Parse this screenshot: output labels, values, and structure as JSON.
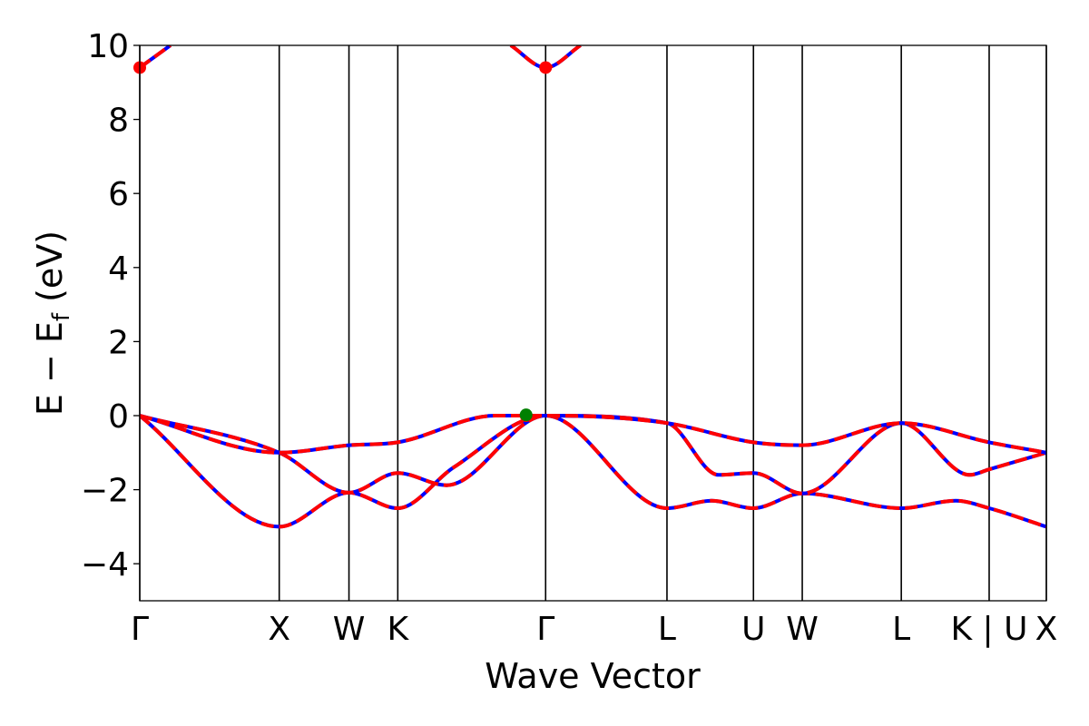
{
  "chart_data": {
    "type": "line",
    "title": "",
    "xlabel": "Wave Vector",
    "ylabel": {
      "main": "E − E",
      "subscript": "f",
      "unit": " (eV)"
    },
    "ylim": [
      -5,
      10
    ],
    "xlim": [
      0,
      6.5
    ],
    "y_ticks": [
      {
        "value": -4,
        "label": "−4"
      },
      {
        "value": -2,
        "label": "−2"
      },
      {
        "value": 0,
        "label": "0"
      },
      {
        "value": 2,
        "label": "2"
      },
      {
        "value": 4,
        "label": "4"
      },
      {
        "value": 6,
        "label": "6"
      },
      {
        "value": 8,
        "label": "8"
      },
      {
        "value": 10,
        "label": "10"
      }
    ],
    "kpoints": [
      {
        "label": "Γ",
        "x": 0.0
      },
      {
        "label": "X",
        "x": 1.0
      },
      {
        "label": "W",
        "x": 1.5
      },
      {
        "label": "K",
        "x": 1.85
      },
      {
        "label": "Γ",
        "x": 2.91
      },
      {
        "label": "L",
        "x": 3.78
      },
      {
        "label": "U",
        "x": 4.4
      },
      {
        "label": "W",
        "x": 4.75
      },
      {
        "label": "L",
        "x": 5.46
      },
      {
        "label": "K | U",
        "x": 6.09
      },
      {
        "label": "X",
        "x": 6.5
      }
    ],
    "grid": false,
    "legend": "none",
    "colors": {
      "spin_down": "#0000ff",
      "spin_up": "#ff0000",
      "cbm": "#ff0000",
      "vbm": "#008000"
    },
    "bands": [
      {
        "points": [
          [
            0,
            0
          ],
          [
            1,
            -3
          ],
          [
            1.5,
            -2.08
          ],
          [
            1.85,
            -2.5
          ],
          [
            2.25,
            -1.4
          ],
          [
            2.91,
            0
          ],
          [
            3.78,
            -2.5
          ],
          [
            4.1,
            -2.3
          ],
          [
            4.4,
            -2.5
          ],
          [
            4.75,
            -2.1
          ],
          [
            5.46,
            -2.5
          ],
          [
            5.85,
            -2.3
          ],
          [
            6.09,
            -2.5
          ],
          [
            6.5,
            -3
          ]
        ]
      },
      {
        "points": [
          [
            0,
            0
          ],
          [
            1,
            -1
          ],
          [
            1.5,
            -2.08
          ],
          [
            1.85,
            -1.55
          ],
          [
            2.2,
            -1.88
          ],
          [
            2.91,
            0
          ],
          [
            3.78,
            -0.2
          ],
          [
            4.15,
            -1.6
          ],
          [
            4.4,
            -1.55
          ],
          [
            4.75,
            -2.1
          ],
          [
            5.46,
            -0.2
          ],
          [
            5.95,
            -1.6
          ],
          [
            6.09,
            -1.45
          ],
          [
            6.5,
            -1
          ]
        ]
      },
      {
        "points": [
          [
            0,
            0
          ],
          [
            1,
            -1
          ],
          [
            1.5,
            -0.8
          ],
          [
            1.85,
            -0.72
          ],
          [
            2.55,
            0
          ],
          [
            2.91,
            0
          ],
          [
            3.78,
            -0.2
          ],
          [
            4.4,
            -0.72
          ],
          [
            4.75,
            -0.8
          ],
          [
            5.46,
            -0.2
          ],
          [
            6.09,
            -0.72
          ],
          [
            6.5,
            -1
          ]
        ]
      },
      {
        "points": [
          [
            0,
            9.4
          ],
          [
            0.22,
            10
          ]
        ]
      },
      {
        "points": [
          [
            2.66,
            10
          ],
          [
            2.91,
            9.4
          ],
          [
            3.16,
            10
          ]
        ]
      }
    ],
    "markers": [
      {
        "type": "cbm",
        "x": 0.0,
        "y": 9.4
      },
      {
        "type": "cbm",
        "x": 2.91,
        "y": 9.4
      },
      {
        "type": "cbm",
        "x": 2.77,
        "y": 0.0
      },
      {
        "type": "vbm",
        "x": 2.77,
        "y": 0.02
      }
    ]
  }
}
